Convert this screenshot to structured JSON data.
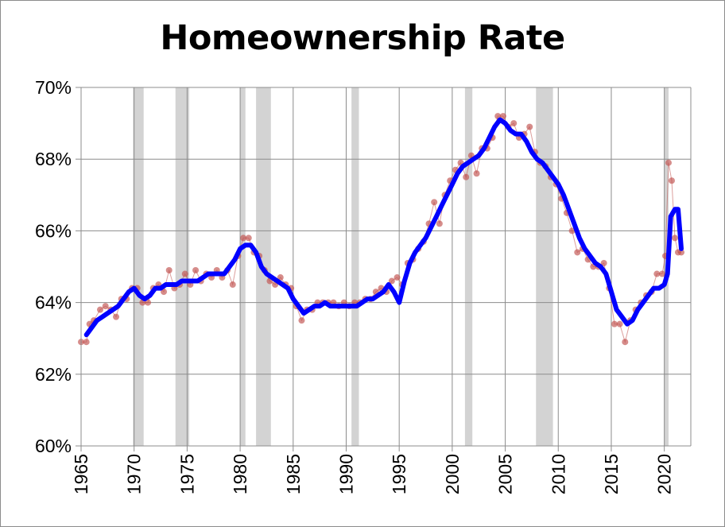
{
  "chart_data": {
    "type": "line",
    "title": "Homeownership Rate",
    "xlim": [
      1965,
      2022.5
    ],
    "ylim": [
      60,
      70
    ],
    "yticks": [
      60,
      62,
      64,
      66,
      68,
      70
    ],
    "ytick_labels": [
      "60%",
      "62%",
      "64%",
      "66%",
      "68%",
      "70%"
    ],
    "xticks": [
      1965,
      1970,
      1975,
      1980,
      1985,
      1990,
      1995,
      2000,
      2005,
      2010,
      2015,
      2020
    ],
    "xtick_labels": [
      "1965",
      "1970",
      "1975",
      "1980",
      "1985",
      "1990",
      "1995",
      "2000",
      "2005",
      "2010",
      "2015",
      "2020"
    ],
    "grid": true,
    "recessions": [
      [
        1969.9,
        1970.9
      ],
      [
        1973.9,
        1975.2
      ],
      [
        1980.0,
        1980.5
      ],
      [
        1981.5,
        1982.9
      ],
      [
        1990.5,
        1991.2
      ],
      [
        2001.2,
        2001.9
      ],
      [
        2007.9,
        2009.5
      ],
      [
        2020.0,
        2020.4
      ]
    ],
    "series": [
      {
        "kind": "scatter-line",
        "color": "#c0504d",
        "x": [
          1965.0,
          1965.5,
          1965.8,
          1966.2,
          1966.8,
          1967.3,
          1967.8,
          1968.3,
          1968.8,
          1969.3,
          1969.8,
          1970.3,
          1970.8,
          1971.3,
          1971.8,
          1972.3,
          1972.8,
          1973.3,
          1973.8,
          1974.3,
          1974.8,
          1975.3,
          1975.8,
          1976.3,
          1976.8,
          1977.3,
          1977.8,
          1978.3,
          1978.8,
          1979.3,
          1979.8,
          1980.3,
          1980.8,
          1981.3,
          1981.8,
          1982.3,
          1982.8,
          1983.3,
          1983.8,
          1984.3,
          1984.8,
          1985.3,
          1985.8,
          1986.3,
          1986.8,
          1987.3,
          1987.8,
          1988.3,
          1988.8,
          1989.3,
          1989.8,
          1990.3,
          1990.8,
          1991.3,
          1991.8,
          1992.3,
          1992.8,
          1993.3,
          1993.8,
          1994.3,
          1994.8,
          1995.3,
          1995.8,
          1996.3,
          1996.8,
          1997.3,
          1997.8,
          1998.3,
          1998.8,
          1999.3,
          1999.8,
          2000.3,
          2000.8,
          2001.3,
          2001.8,
          2002.3,
          2002.8,
          2003.3,
          2003.8,
          2004.3,
          2004.8,
          2005.3,
          2005.8,
          2006.3,
          2006.8,
          2007.3,
          2007.8,
          2008.3,
          2008.8,
          2009.3,
          2009.8,
          2010.3,
          2010.8,
          2011.3,
          2011.8,
          2012.3,
          2012.8,
          2013.3,
          2013.8,
          2014.3,
          2014.8,
          2015.3,
          2015.8,
          2016.3,
          2016.8,
          2017.3,
          2017.8,
          2018.3,
          2018.8,
          2019.3,
          2019.8,
          2020.1,
          2020.4,
          2020.7,
          2021.0,
          2021.3,
          2021.6
        ],
        "y": [
          62.9,
          62.9,
          63.4,
          63.5,
          63.8,
          63.9,
          63.8,
          63.6,
          64.1,
          64.1,
          64.4,
          64.4,
          64.0,
          64.0,
          64.4,
          64.5,
          64.3,
          64.9,
          64.4,
          64.5,
          64.8,
          64.5,
          64.9,
          64.6,
          64.8,
          64.7,
          64.9,
          64.7,
          64.9,
          64.5,
          65.3,
          65.8,
          65.8,
          65.4,
          65.3,
          64.9,
          64.6,
          64.5,
          64.7,
          64.5,
          64.4,
          63.9,
          63.5,
          63.8,
          63.8,
          64.0,
          64.0,
          64.0,
          64.0,
          63.9,
          64.0,
          63.9,
          64.0,
          64.0,
          64.1,
          64.1,
          64.3,
          64.4,
          64.3,
          64.6,
          64.7,
          64.5,
          65.1,
          65.2,
          65.5,
          65.7,
          66.2,
          66.8,
          66.2,
          67.0,
          67.4,
          67.7,
          67.9,
          67.5,
          68.1,
          67.6,
          68.3,
          68.3,
          68.6,
          69.2,
          69.2,
          68.9,
          69.0,
          68.6,
          68.7,
          68.9,
          68.2,
          67.9,
          67.8,
          67.5,
          67.3,
          66.9,
          66.5,
          66.0,
          65.4,
          65.5,
          65.2,
          65.0,
          65.0,
          65.1,
          64.4,
          63.4,
          63.4,
          62.9,
          63.5,
          63.8,
          64.0,
          64.2,
          64.3,
          64.8,
          64.8,
          65.3,
          67.9,
          67.4,
          65.8,
          65.4,
          65.4
        ]
      },
      {
        "kind": "line",
        "color": "#0000ff",
        "x": [
          1965.5,
          1966,
          1966.5,
          1967,
          1967.5,
          1968,
          1968.5,
          1969,
          1969.5,
          1970,
          1970.5,
          1971,
          1971.5,
          1972,
          1972.5,
          1973,
          1973.5,
          1974,
          1974.5,
          1975,
          1975.5,
          1976,
          1976.5,
          1977,
          1977.5,
          1978,
          1978.5,
          1979,
          1979.5,
          1980,
          1980.5,
          1981,
          1981.5,
          1982,
          1982.5,
          1983,
          1983.5,
          1984,
          1984.5,
          1985,
          1985.5,
          1986,
          1986.5,
          1987,
          1987.5,
          1988,
          1988.5,
          1989,
          1989.5,
          1990,
          1990.5,
          1991,
          1991.5,
          1992,
          1992.5,
          1993,
          1993.5,
          1994,
          1994.5,
          1995,
          1995.5,
          1996,
          1996.5,
          1997,
          1997.5,
          1998,
          1998.5,
          1999,
          1999.5,
          2000,
          2000.5,
          2001,
          2001.5,
          2002,
          2002.5,
          2003,
          2003.5,
          2004,
          2004.5,
          2005,
          2005.5,
          2006,
          2006.5,
          2007,
          2007.5,
          2008,
          2008.5,
          2009,
          2009.5,
          2010,
          2010.5,
          2011,
          2011.5,
          2012,
          2012.5,
          2013,
          2013.5,
          2014,
          2014.5,
          2015,
          2015.5,
          2016,
          2016.5,
          2017,
          2017.5,
          2018,
          2018.5,
          2019,
          2019.5,
          2020,
          2020.3,
          2020.6,
          2021,
          2021.3,
          2021.6
        ],
        "y": [
          63.1,
          63.3,
          63.5,
          63.6,
          63.7,
          63.8,
          63.9,
          64.1,
          64.3,
          64.4,
          64.2,
          64.1,
          64.2,
          64.4,
          64.4,
          64.5,
          64.5,
          64.5,
          64.6,
          64.6,
          64.6,
          64.6,
          64.7,
          64.8,
          64.8,
          64.8,
          64.8,
          65.0,
          65.2,
          65.5,
          65.6,
          65.6,
          65.4,
          65.0,
          64.8,
          64.7,
          64.6,
          64.5,
          64.4,
          64.1,
          63.9,
          63.7,
          63.8,
          63.9,
          63.9,
          64.0,
          63.9,
          63.9,
          63.9,
          63.9,
          63.9,
          63.9,
          64.0,
          64.1,
          64.1,
          64.2,
          64.3,
          64.5,
          64.3,
          64.0,
          64.6,
          65.1,
          65.4,
          65.6,
          65.8,
          66.1,
          66.4,
          66.7,
          67.0,
          67.3,
          67.6,
          67.8,
          67.9,
          68.0,
          68.1,
          68.3,
          68.6,
          68.9,
          69.1,
          69.0,
          68.8,
          68.7,
          68.7,
          68.5,
          68.2,
          68.0,
          67.9,
          67.7,
          67.5,
          67.3,
          67.0,
          66.6,
          66.2,
          65.8,
          65.5,
          65.3,
          65.1,
          65.0,
          64.8,
          64.3,
          63.8,
          63.6,
          63.4,
          63.5,
          63.8,
          64.0,
          64.2,
          64.4,
          64.4,
          64.5,
          64.8,
          66.4,
          66.6,
          66.6,
          65.5
        ]
      }
    ]
  }
}
